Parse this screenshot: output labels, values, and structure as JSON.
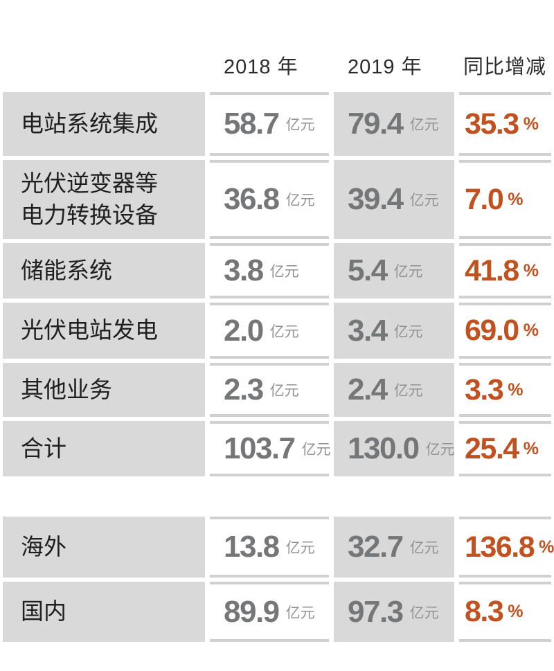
{
  "labels": {
    "unit": "亿元",
    "percent": "%"
  },
  "colors": {
    "background": "#ffffff",
    "cell_gray": "#d9d9d9",
    "divider_bar": "#d0d0d0",
    "header_text": "#2b2b2b",
    "label_text": "#1f1f1f",
    "value_text": "#757678",
    "unit_text": "#909193",
    "change_accent": "#c1511e"
  },
  "chart_data": [
    {
      "type": "table",
      "name": "revenue-by-business",
      "columns": [
        "",
        "2018 年",
        "2019 年",
        "同比增减"
      ],
      "unit": "亿元",
      "change_unit": "%",
      "rows": [
        {
          "category": "电站系统集成",
          "y2018": 58.7,
          "y2019": 79.4,
          "yoy_change_pct": 35.3
        },
        {
          "category": "光伏逆变器等电力转换设备",
          "category_display": "光伏逆变器等\n电力转换设备",
          "y2018": 36.8,
          "y2019": 39.4,
          "yoy_change_pct": 7.0
        },
        {
          "category": "储能系统",
          "y2018": 3.8,
          "y2019": 5.4,
          "yoy_change_pct": 41.8
        },
        {
          "category": "光伏电站发电",
          "y2018": 2.0,
          "y2019": 3.4,
          "yoy_change_pct": 69.0
        },
        {
          "category": "其他业务",
          "y2018": 2.3,
          "y2019": 2.4,
          "yoy_change_pct": 3.3
        },
        {
          "category": "合计",
          "y2018": 103.7,
          "y2019": 130.0,
          "yoy_change_pct": 25.4
        }
      ]
    },
    {
      "type": "table",
      "name": "revenue-by-region",
      "columns": [
        "",
        "2018 年",
        "2019 年",
        "同比增减"
      ],
      "unit": "亿元",
      "change_unit": "%",
      "rows": [
        {
          "category": "海外",
          "y2018": 13.8,
          "y2019": 32.7,
          "yoy_change_pct": 136.8
        },
        {
          "category": "国内",
          "y2018": 89.9,
          "y2019": 97.3,
          "yoy_change_pct": 8.3
        }
      ]
    }
  ]
}
